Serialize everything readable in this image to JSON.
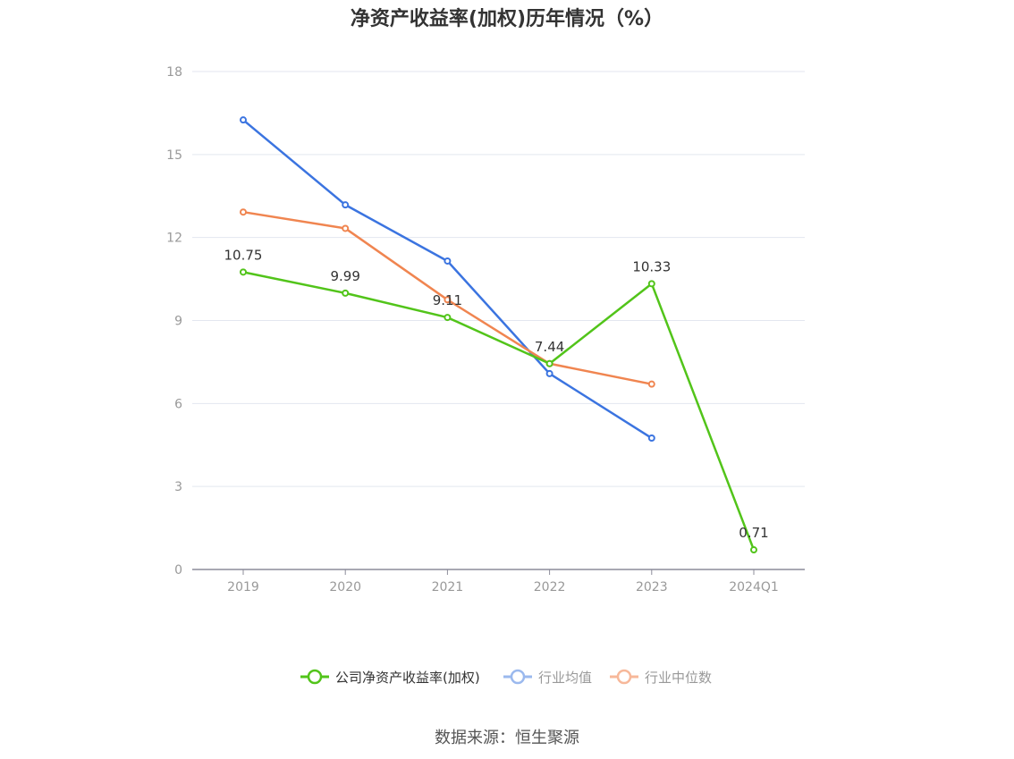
{
  "chart_data": {
    "type": "line",
    "title": "净资产收益率(加权)历年情况（%）",
    "categories": [
      "2019",
      "2020",
      "2021",
      "2022",
      "2023",
      "2024Q1"
    ],
    "ylim": [
      0,
      18
    ],
    "yticks": [
      0,
      3,
      6,
      9,
      12,
      15,
      18
    ],
    "grid": true,
    "legend_position": "bottom-center",
    "series": [
      {
        "name": "公司净资产收益率(加权)",
        "color": "#52c41a",
        "values": [
          10.75,
          9.99,
          9.11,
          7.44,
          10.33,
          0.71
        ],
        "show_labels": true
      },
      {
        "name": "行业均值",
        "color": "#3b74e0",
        "values": [
          16.25,
          13.18,
          11.15,
          7.08,
          4.75,
          null
        ],
        "show_labels": false
      },
      {
        "name": "行业中位数",
        "color": "#f08550",
        "values": [
          12.92,
          12.33,
          9.75,
          7.44,
          6.7,
          null
        ],
        "show_labels": false
      }
    ],
    "data_labels": [
      "10.75",
      "9.99",
      "9.11",
      "7.44",
      "10.33",
      "0.71"
    ]
  },
  "legend": {
    "items": [
      "公司净资产收益率(加权)",
      "行业均值",
      "行业中位数"
    ],
    "colors": [
      "#52c41a",
      "#9bb9ee",
      "#f7b89a"
    ]
  },
  "source": "数据来源：恒生聚源"
}
